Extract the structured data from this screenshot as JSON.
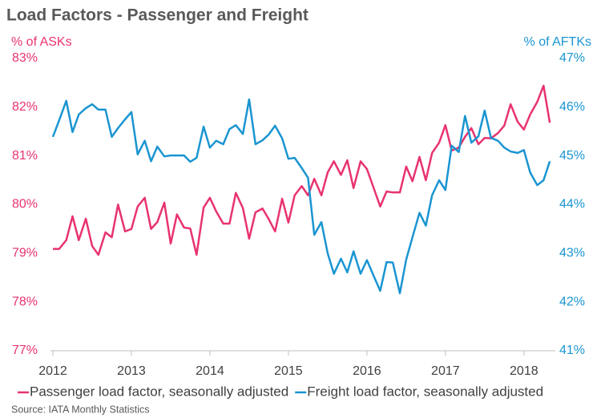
{
  "chart_data": {
    "type": "line",
    "title": "Load Factors - Passenger and Freight",
    "y_label": "% of ASKs",
    "y2_label": "% of AFTKs",
    "source": "Source: IATA Monthly Statistics",
    "x": [
      2012.0,
      2012.08,
      2012.17,
      2012.25,
      2012.33,
      2012.42,
      2012.5,
      2012.58,
      2012.67,
      2012.75,
      2012.83,
      2012.92,
      2013.0,
      2013.08,
      2013.17,
      2013.25,
      2013.33,
      2013.42,
      2013.5,
      2013.58,
      2013.67,
      2013.75,
      2013.83,
      2013.92,
      2014.0,
      2014.08,
      2014.17,
      2014.25,
      2014.33,
      2014.42,
      2014.5,
      2014.58,
      2014.67,
      2014.75,
      2014.83,
      2014.92,
      2015.0,
      2015.08,
      2015.17,
      2015.25,
      2015.33,
      2015.42,
      2015.5,
      2015.58,
      2015.67,
      2015.75,
      2015.83,
      2015.92,
      2016.0,
      2016.08,
      2016.17,
      2016.25,
      2016.33,
      2016.42,
      2016.5,
      2016.58,
      2016.67,
      2016.75,
      2016.83,
      2016.92,
      2017.0,
      2017.08,
      2017.17,
      2017.25,
      2017.33,
      2017.42,
      2017.5,
      2017.58,
      2017.67,
      2017.75,
      2017.83,
      2017.92,
      2018.0,
      2018.08,
      2018.17,
      2018.25,
      2018.33
    ],
    "xlim": [
      2012,
      2018.4
    ],
    "xticks": [
      2012,
      2013,
      2014,
      2015,
      2016,
      2017,
      2018
    ],
    "ylim": [
      77,
      83
    ],
    "yticks": [
      {
        "value": 77,
        "label": "77%"
      },
      {
        "value": 78,
        "label": "78%"
      },
      {
        "value": 79,
        "label": "79%"
      },
      {
        "value": 80,
        "label": "80%"
      },
      {
        "value": 81,
        "label": "81%"
      },
      {
        "value": 82,
        "label": "82%"
      },
      {
        "value": 83,
        "label": "83%"
      }
    ],
    "y2lim": [
      41,
      47
    ],
    "y2ticks": [
      {
        "value": 41,
        "label": "41%"
      },
      {
        "value": 42,
        "label": "42%"
      },
      {
        "value": 43,
        "label": "43%"
      },
      {
        "value": 44,
        "label": "44%"
      },
      {
        "value": 45,
        "label": "45%"
      },
      {
        "value": 46,
        "label": "46%"
      },
      {
        "value": 47,
        "label": "47%"
      }
    ],
    "legend": "bottom",
    "series": [
      {
        "name": "Passenger load factor, seasonally adjusted",
        "color": "#e8336f",
        "axis": "y",
        "values": [
          79.09,
          79.09,
          79.27,
          79.76,
          79.27,
          79.71,
          79.15,
          78.97,
          79.43,
          79.33,
          80.0,
          79.45,
          79.5,
          79.96,
          80.14,
          79.5,
          79.64,
          80.04,
          79.2,
          79.8,
          79.53,
          79.51,
          78.97,
          79.94,
          80.14,
          79.86,
          79.61,
          79.61,
          80.24,
          79.93,
          79.3,
          79.84,
          79.92,
          79.7,
          79.45,
          80.12,
          79.63,
          80.19,
          80.38,
          80.19,
          80.53,
          80.19,
          80.66,
          80.89,
          80.61,
          80.91,
          80.34,
          80.89,
          80.73,
          80.37,
          79.96,
          80.27,
          80.25,
          80.25,
          80.78,
          80.48,
          80.98,
          80.5,
          81.06,
          81.27,
          81.63,
          81.11,
          81.17,
          81.39,
          81.57,
          81.24,
          81.37,
          81.36,
          81.47,
          81.62,
          82.06,
          81.7,
          81.54,
          81.85,
          82.11,
          82.44,
          81.68
        ]
      },
      {
        "name": "Freight load factor, seasonally adjusted",
        "color": "#1a95d1",
        "axis": "y2",
        "values": [
          45.39,
          45.73,
          46.13,
          45.49,
          45.85,
          45.98,
          46.06,
          45.95,
          45.95,
          45.39,
          45.57,
          45.75,
          45.9,
          45.03,
          45.31,
          44.89,
          45.19,
          44.99,
          45.01,
          45.01,
          45.01,
          44.88,
          44.96,
          45.6,
          45.17,
          45.31,
          45.24,
          45.55,
          45.63,
          45.45,
          46.16,
          45.24,
          45.32,
          45.44,
          45.62,
          45.36,
          44.94,
          44.96,
          44.75,
          44.55,
          43.38,
          43.64,
          43.0,
          42.58,
          42.89,
          42.61,
          43.04,
          42.58,
          42.86,
          42.56,
          42.23,
          42.82,
          42.81,
          42.18,
          42.87,
          43.33,
          43.83,
          43.57,
          44.19,
          44.5,
          44.3,
          45.21,
          45.08,
          45.82,
          45.27,
          45.4,
          45.93,
          45.37,
          45.31,
          45.17,
          45.09,
          45.06,
          45.12,
          44.66,
          44.4,
          44.5,
          44.89
        ]
      }
    ]
  }
}
